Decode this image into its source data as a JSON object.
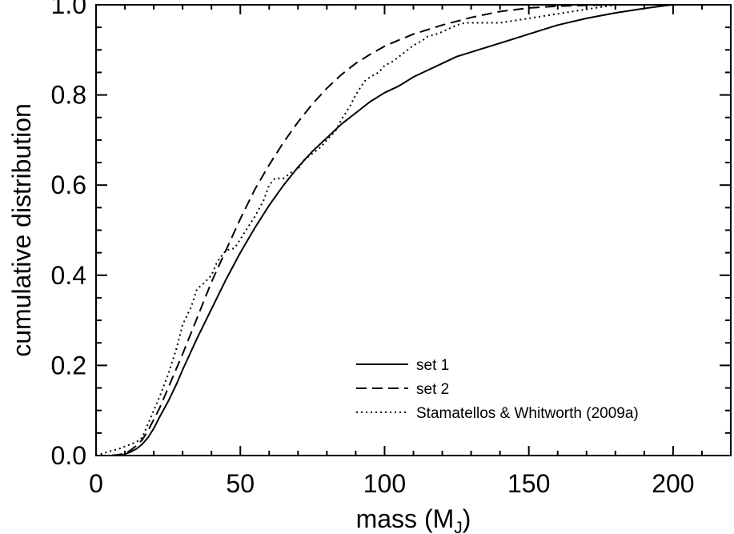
{
  "chart_data": {
    "type": "line",
    "xlabel": "mass (M",
    "xlabel_sub": "J",
    "xlabel_close": ")",
    "ylabel": "cumulative distribution",
    "xlim": [
      0,
      220
    ],
    "ylim": [
      0.0,
      1.0
    ],
    "xticks": [
      0,
      50,
      100,
      150,
      200
    ],
    "xtick_labels": [
      "0",
      "50",
      "100",
      "150",
      "200"
    ],
    "yticks": [
      0.0,
      0.2,
      0.4,
      0.6,
      0.8,
      1.0
    ],
    "ytick_labels": [
      "0.0",
      "0.2",
      "0.4",
      "0.6",
      "0.8",
      "1.0"
    ],
    "grid": false,
    "legend_position": "lower-right",
    "series": [
      {
        "name": "set 1",
        "style": "solid",
        "x": [
          0,
          5,
          8,
          10,
          12,
          14,
          16,
          18,
          20,
          22,
          25,
          28,
          30,
          35,
          40,
          45,
          50,
          55,
          60,
          65,
          70,
          75,
          80,
          85,
          90,
          95,
          100,
          105,
          110,
          115,
          120,
          125,
          130,
          140,
          150,
          160,
          170,
          180,
          190,
          197,
          200
        ],
        "y": [
          0.0,
          0.0,
          0.0,
          0.003,
          0.008,
          0.015,
          0.025,
          0.04,
          0.06,
          0.085,
          0.12,
          0.16,
          0.19,
          0.26,
          0.325,
          0.39,
          0.45,
          0.505,
          0.555,
          0.6,
          0.64,
          0.675,
          0.705,
          0.735,
          0.76,
          0.785,
          0.805,
          0.82,
          0.84,
          0.855,
          0.87,
          0.885,
          0.895,
          0.915,
          0.935,
          0.955,
          0.97,
          0.982,
          0.992,
          0.998,
          1.0
        ]
      },
      {
        "name": "set 2",
        "style": "dashed",
        "x": [
          0,
          5,
          8,
          10,
          12,
          14,
          16,
          18,
          20,
          22,
          25,
          28,
          30,
          35,
          40,
          45,
          50,
          55,
          60,
          65,
          70,
          75,
          80,
          85,
          90,
          95,
          100,
          105,
          110,
          115,
          120,
          130,
          140,
          150,
          160,
          170,
          180
        ],
        "y": [
          0.0,
          0.0,
          0.002,
          0.005,
          0.012,
          0.022,
          0.035,
          0.055,
          0.08,
          0.105,
          0.15,
          0.195,
          0.225,
          0.305,
          0.385,
          0.455,
          0.525,
          0.59,
          0.645,
          0.695,
          0.74,
          0.78,
          0.815,
          0.845,
          0.87,
          0.89,
          0.908,
          0.922,
          0.935,
          0.945,
          0.955,
          0.972,
          0.985,
          0.993,
          0.997,
          0.999,
          1.0
        ]
      },
      {
        "name": "Stamatellos & Whitworth (2009a)",
        "style": "dotted",
        "x": [
          0,
          5,
          8,
          10,
          12,
          14,
          16,
          18,
          20,
          22,
          25,
          28,
          30,
          33,
          35,
          37,
          40,
          42,
          45,
          48,
          50,
          53,
          55,
          58,
          60,
          62,
          65,
          68,
          70,
          72,
          75,
          78,
          80,
          83,
          85,
          88,
          90,
          93,
          95,
          98,
          100,
          103,
          105,
          108,
          110,
          113,
          115,
          118,
          120,
          125,
          128,
          130,
          135,
          140,
          145,
          150,
          155,
          160,
          165,
          170,
          175,
          180
        ],
        "y": [
          0.0,
          0.01,
          0.015,
          0.02,
          0.025,
          0.03,
          0.04,
          0.07,
          0.1,
          0.13,
          0.18,
          0.24,
          0.29,
          0.33,
          0.37,
          0.38,
          0.4,
          0.43,
          0.455,
          0.46,
          0.48,
          0.51,
          0.53,
          0.565,
          0.6,
          0.615,
          0.615,
          0.63,
          0.635,
          0.655,
          0.67,
          0.685,
          0.7,
          0.72,
          0.745,
          0.775,
          0.8,
          0.83,
          0.84,
          0.85,
          0.865,
          0.875,
          0.885,
          0.9,
          0.91,
          0.92,
          0.93,
          0.935,
          0.94,
          0.955,
          0.96,
          0.96,
          0.96,
          0.96,
          0.965,
          0.97,
          0.975,
          0.98,
          0.985,
          0.99,
          0.995,
          1.0
        ]
      }
    ]
  }
}
